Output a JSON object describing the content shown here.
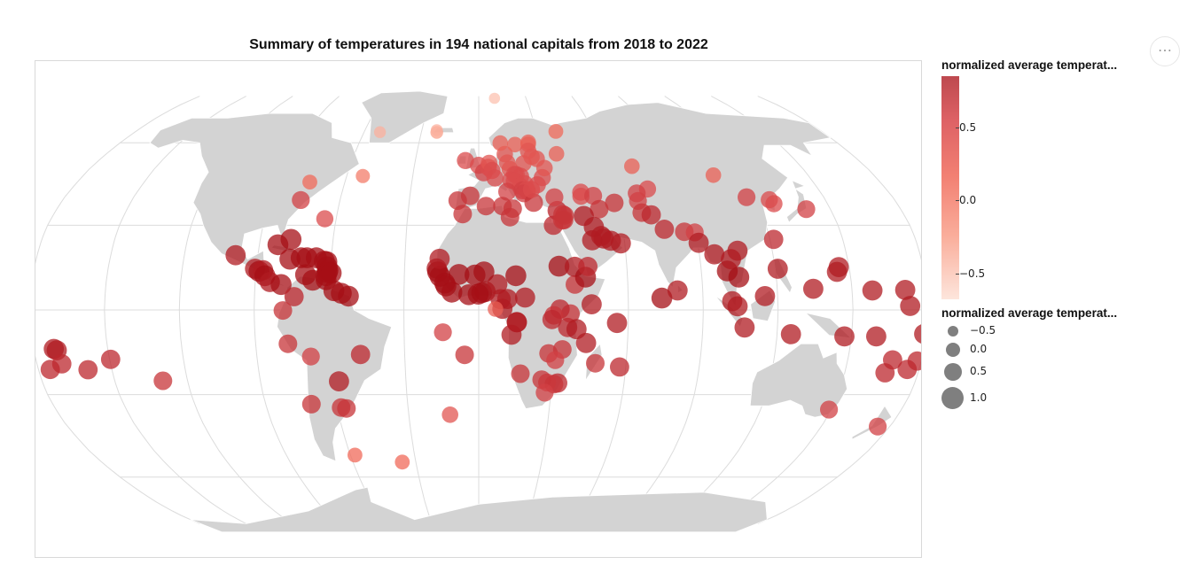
{
  "header": {
    "title": "Summary of temperatures in 194 national capitals from 2018 to 2022",
    "more_icon": "more-horizontal-icon"
  },
  "legend": {
    "color_title": "normalized average temperat...",
    "color_ticks": [
      "0.5",
      "0.0",
      "−0.5"
    ],
    "size_title": "normalized average temperat...",
    "size_items": [
      "−0.5",
      "0.0",
      "0.5",
      "1.0"
    ]
  },
  "colors": {
    "land": "#d3d3d3",
    "graticule": "#dcdcdc",
    "point_low": "#fde1d6",
    "point_high": "#a50f15"
  },
  "map_data": {
    "projection": "robinson",
    "points": [
      {
        "lon": -51.7,
        "lat": 64.2,
        "t": -0.3
      },
      {
        "lon": -21.9,
        "lat": 64.1,
        "t": -0.2
      },
      {
        "lon": -75.7,
        "lat": 45.4,
        "t": 0.1
      },
      {
        "lon": -77.0,
        "lat": 38.9,
        "t": 0.5
      },
      {
        "lon": -52.7,
        "lat": 47.6,
        "t": 0.0
      },
      {
        "lon": -64.8,
        "lat": 32.3,
        "t": 0.4
      },
      {
        "lon": -99.1,
        "lat": 19.4,
        "t": 0.8
      },
      {
        "lon": -90.5,
        "lat": 14.6,
        "t": 0.8
      },
      {
        "lon": -88.8,
        "lat": 13.7,
        "t": 0.9
      },
      {
        "lon": -87.2,
        "lat": 14.1,
        "t": 0.8
      },
      {
        "lon": -86.3,
        "lat": 12.1,
        "t": 0.9
      },
      {
        "lon": -84.1,
        "lat": 9.9,
        "t": 0.8
      },
      {
        "lon": -79.5,
        "lat": 9.0,
        "t": 0.9
      },
      {
        "lon": -82.4,
        "lat": 23.1,
        "t": 0.9
      },
      {
        "lon": -77.3,
        "lat": 25.0,
        "t": 0.9
      },
      {
        "lon": -76.8,
        "lat": 18.0,
        "t": 0.9
      },
      {
        "lon": -72.3,
        "lat": 18.5,
        "t": 0.9
      },
      {
        "lon": -69.9,
        "lat": 18.5,
        "t": 0.9
      },
      {
        "lon": -66.1,
        "lat": 18.5,
        "t": 0.9
      },
      {
        "lon": -61.7,
        "lat": 17.1,
        "t": 0.9
      },
      {
        "lon": -62.7,
        "lat": 17.3,
        "t": 0.9
      },
      {
        "lon": -61.4,
        "lat": 15.3,
        "t": 0.9
      },
      {
        "lon": -61.0,
        "lat": 14.0,
        "t": 0.9
      },
      {
        "lon": -59.6,
        "lat": 13.1,
        "t": 0.9
      },
      {
        "lon": -61.2,
        "lat": 13.2,
        "t": 0.9
      },
      {
        "lon": -61.7,
        "lat": 12.1,
        "t": 0.9
      },
      {
        "lon": -61.5,
        "lat": 10.7,
        "t": 0.9
      },
      {
        "lon": -69.9,
        "lat": 12.5,
        "t": 0.9
      },
      {
        "lon": -66.9,
        "lat": 10.5,
        "t": 0.9
      },
      {
        "lon": -74.1,
        "lat": 4.7,
        "t": 0.7
      },
      {
        "lon": -78.5,
        "lat": -0.2,
        "t": 0.6
      },
      {
        "lon": -58.2,
        "lat": 6.8,
        "t": 0.9
      },
      {
        "lon": -55.2,
        "lat": 5.9,
        "t": 0.9
      },
      {
        "lon": -52.3,
        "lat": 4.9,
        "t": 0.9
      },
      {
        "lon": -77.0,
        "lat": -12.0,
        "t": 0.6
      },
      {
        "lon": -68.1,
        "lat": -16.5,
        "t": 0.5
      },
      {
        "lon": -47.9,
        "lat": -15.8,
        "t": 0.7
      },
      {
        "lon": -57.6,
        "lat": -25.3,
        "t": 0.8
      },
      {
        "lon": -70.7,
        "lat": -33.4,
        "t": 0.6
      },
      {
        "lon": -58.4,
        "lat": -34.6,
        "t": 0.6
      },
      {
        "lon": -56.2,
        "lat": -34.9,
        "t": 0.6
      },
      {
        "lon": -57.9,
        "lat": -51.7,
        "t": 0.1
      },
      {
        "lon": -36.5,
        "lat": -54.3,
        "t": 0.1
      },
      {
        "lon": -14.4,
        "lat": -7.9,
        "t": 0.5
      },
      {
        "lon": -5.7,
        "lat": -15.9,
        "t": 0.6
      },
      {
        "lon": -12.3,
        "lat": -37.1,
        "t": 0.3
      },
      {
        "lon": -22.1,
        "lat": 65.0,
        "t": -0.3
      },
      {
        "lon": -6.3,
        "lat": 53.3,
        "t": 0.4
      },
      {
        "lon": -0.1,
        "lat": 51.5,
        "t": 0.4
      },
      {
        "lon": -9.1,
        "lat": 38.7,
        "t": 0.6
      },
      {
        "lon": -3.7,
        "lat": 40.4,
        "t": 0.6
      },
      {
        "lon": 2.3,
        "lat": 48.9,
        "t": 0.5
      },
      {
        "lon": 4.4,
        "lat": 50.8,
        "t": 0.4
      },
      {
        "lon": 4.9,
        "lat": 52.4,
        "t": 0.3
      },
      {
        "lon": 6.1,
        "lat": 49.6,
        "t": 0.4
      },
      {
        "lon": 7.4,
        "lat": 46.9,
        "t": 0.4
      },
      {
        "lon": 13.4,
        "lat": 52.5,
        "t": 0.3
      },
      {
        "lon": 12.6,
        "lat": 55.7,
        "t": 0.3
      },
      {
        "lon": 10.8,
        "lat": 59.9,
        "t": 0.2
      },
      {
        "lon": 18.1,
        "lat": 59.3,
        "t": 0.2
      },
      {
        "lon": 24.9,
        "lat": 60.2,
        "t": 0.2
      },
      {
        "lon": 24.7,
        "lat": 59.4,
        "t": 0.2
      },
      {
        "lon": 24.1,
        "lat": 56.9,
        "t": 0.3
      },
      {
        "lon": 25.3,
        "lat": 54.7,
        "t": 0.3
      },
      {
        "lon": 27.6,
        "lat": 53.9,
        "t": 0.3
      },
      {
        "lon": 21.0,
        "lat": 52.2,
        "t": 0.3
      },
      {
        "lon": 14.4,
        "lat": 50.1,
        "t": 0.3
      },
      {
        "lon": 16.4,
        "lat": 48.2,
        "t": 0.4
      },
      {
        "lon": 17.1,
        "lat": 48.1,
        "t": 0.4
      },
      {
        "lon": 19.0,
        "lat": 47.5,
        "t": 0.4
      },
      {
        "lon": 14.5,
        "lat": 46.1,
        "t": 0.4
      },
      {
        "lon": 16.0,
        "lat": 45.8,
        "t": 0.4
      },
      {
        "lon": 18.4,
        "lat": 43.9,
        "t": 0.4
      },
      {
        "lon": 20.5,
        "lat": 44.8,
        "t": 0.4
      },
      {
        "lon": 19.3,
        "lat": 42.4,
        "t": 0.5
      },
      {
        "lon": 21.2,
        "lat": 42.7,
        "t": 0.4
      },
      {
        "lon": 21.4,
        "lat": 42.0,
        "t": 0.4
      },
      {
        "lon": 19.8,
        "lat": 41.3,
        "t": 0.5
      },
      {
        "lon": 23.7,
        "lat": 38.0,
        "t": 0.6
      },
      {
        "lon": 23.3,
        "lat": 42.7,
        "t": 0.4
      },
      {
        "lon": 26.1,
        "lat": 44.4,
        "t": 0.4
      },
      {
        "lon": 28.8,
        "lat": 47.0,
        "t": 0.4
      },
      {
        "lon": 30.5,
        "lat": 50.5,
        "t": 0.3
      },
      {
        "lon": 37.6,
        "lat": 55.8,
        "t": 0.2
      },
      {
        "lon": 12.5,
        "lat": 41.9,
        "t": 0.5
      },
      {
        "lon": 14.5,
        "lat": 35.9,
        "t": 0.6
      },
      {
        "lon": 33.4,
        "lat": 35.2,
        "t": 0.7
      },
      {
        "lon": 32.9,
        "lat": 39.9,
        "t": 0.5
      },
      {
        "lon": 44.8,
        "lat": 41.7,
        "t": 0.4
      },
      {
        "lon": 44.5,
        "lat": 40.2,
        "t": 0.4
      },
      {
        "lon": 49.9,
        "lat": 40.4,
        "t": 0.5
      },
      {
        "lon": 71.4,
        "lat": 51.2,
        "t": 0.2
      },
      {
        "lon": 74.6,
        "lat": 42.9,
        "t": 0.4
      },
      {
        "lon": 69.2,
        "lat": 41.3,
        "t": 0.5
      },
      {
        "lon": 68.8,
        "lat": 38.6,
        "t": 0.5
      },
      {
        "lon": 58.4,
        "lat": 37.9,
        "t": 0.6
      },
      {
        "lon": 51.4,
        "lat": 35.7,
        "t": 0.6
      },
      {
        "lon": 69.2,
        "lat": 34.5,
        "t": 0.6
      },
      {
        "lon": 73.0,
        "lat": 33.7,
        "t": 0.7
      },
      {
        "lon": 77.2,
        "lat": 28.6,
        "t": 0.7
      },
      {
        "lon": 85.3,
        "lat": 27.7,
        "t": 0.6
      },
      {
        "lon": 89.6,
        "lat": 27.5,
        "t": 0.5
      },
      {
        "lon": 90.4,
        "lat": 23.8,
        "t": 0.8
      },
      {
        "lon": 96.1,
        "lat": 19.7,
        "t": 0.8
      },
      {
        "lon": 100.5,
        "lat": 13.8,
        "t": 0.9
      },
      {
        "lon": 102.6,
        "lat": 18.0,
        "t": 0.8
      },
      {
        "lon": 105.8,
        "lat": 21.0,
        "t": 0.8
      },
      {
        "lon": 104.9,
        "lat": 11.6,
        "t": 0.9
      },
      {
        "lon": 101.7,
        "lat": 3.1,
        "t": 0.8
      },
      {
        "lon": 103.8,
        "lat": 1.3,
        "t": 0.8
      },
      {
        "lon": 114.9,
        "lat": 4.9,
        "t": 0.8
      },
      {
        "lon": 106.8,
        "lat": -6.2,
        "t": 0.8
      },
      {
        "lon": 125.6,
        "lat": -8.6,
        "t": 0.8
      },
      {
        "lon": 121.0,
        "lat": 14.6,
        "t": 0.8
      },
      {
        "lon": 121.5,
        "lat": 25.0,
        "t": 0.7
      },
      {
        "lon": 116.4,
        "lat": 39.9,
        "t": 0.5
      },
      {
        "lon": 106.9,
        "lat": 47.9,
        "t": 0.2
      },
      {
        "lon": 125.8,
        "lat": 39.0,
        "t": 0.4
      },
      {
        "lon": 127.0,
        "lat": 37.6,
        "t": 0.4
      },
      {
        "lon": 139.7,
        "lat": 35.7,
        "t": 0.5
      },
      {
        "lon": 134.5,
        "lat": 7.5,
        "t": 0.8
      },
      {
        "lon": 144.8,
        "lat": 13.5,
        "t": 0.8
      },
      {
        "lon": 145.8,
        "lat": 15.2,
        "t": 0.8
      },
      {
        "lon": 158.2,
        "lat": 6.9,
        "t": 0.8
      },
      {
        "lon": 171.4,
        "lat": 7.1,
        "t": 0.8
      },
      {
        "lon": 173.0,
        "lat": 1.4,
        "t": 0.8
      },
      {
        "lon": 147.2,
        "lat": -9.4,
        "t": 0.8
      },
      {
        "lon": 160.0,
        "lat": -9.4,
        "t": 0.8
      },
      {
        "lon": 168.3,
        "lat": -17.7,
        "t": 0.7
      },
      {
        "lon": 178.4,
        "lat": -18.1,
        "t": 0.7
      },
      {
        "lon": 179.2,
        "lat": -8.5,
        "t": 0.8
      },
      {
        "lon": 175.2,
        "lat": -21.1,
        "t": 0.7
      },
      {
        "lon": 166.5,
        "lat": -22.3,
        "t": 0.7
      },
      {
        "lon": 174.8,
        "lat": -41.3,
        "t": 0.5
      },
      {
        "lon": 149.1,
        "lat": -35.3,
        "t": 0.5
      },
      {
        "lon": -171.8,
        "lat": -13.8,
        "t": 0.8
      },
      {
        "lon": -170.7,
        "lat": -14.3,
        "t": 0.8
      },
      {
        "lon": -169.9,
        "lat": -19.1,
        "t": 0.7
      },
      {
        "lon": -159.8,
        "lat": -21.2,
        "t": 0.7
      },
      {
        "lon": -149.6,
        "lat": -17.5,
        "t": 0.7
      },
      {
        "lon": -175.2,
        "lat": -21.1,
        "t": 0.7
      },
      {
        "lon": -130.1,
        "lat": -25.1,
        "t": 0.6
      },
      {
        "lon": -17.0,
        "lat": 14.7,
        "t": 0.8
      },
      {
        "lon": -16.6,
        "lat": 13.5,
        "t": 0.9
      },
      {
        "lon": -15.6,
        "lat": 11.9,
        "t": 0.9
      },
      {
        "lon": -13.7,
        "lat": 9.5,
        "t": 0.9
      },
      {
        "lon": -13.2,
        "lat": 8.5,
        "t": 0.9
      },
      {
        "lon": -10.8,
        "lat": 6.3,
        "t": 0.9
      },
      {
        "lon": -4.0,
        "lat": 5.4,
        "t": 0.9
      },
      {
        "lon": -0.2,
        "lat": 5.6,
        "t": 0.9
      },
      {
        "lon": 1.2,
        "lat": 6.1,
        "t": 0.9
      },
      {
        "lon": 2.6,
        "lat": 6.5,
        "t": 0.9
      },
      {
        "lon": 7.5,
        "lat": 9.1,
        "t": 0.8
      },
      {
        "lon": 2.1,
        "lat": 13.5,
        "t": 0.9
      },
      {
        "lon": -1.5,
        "lat": 12.4,
        "t": 0.9
      },
      {
        "lon": -8.0,
        "lat": 12.6,
        "t": 0.9
      },
      {
        "lon": -15.9,
        "lat": 18.1,
        "t": 0.8
      },
      {
        "lon": -6.8,
        "lat": 34.0,
        "t": 0.6
      },
      {
        "lon": 3.1,
        "lat": 36.8,
        "t": 0.6
      },
      {
        "lon": 10.2,
        "lat": 36.8,
        "t": 0.6
      },
      {
        "lon": 13.2,
        "lat": 32.9,
        "t": 0.6
      },
      {
        "lon": 31.2,
        "lat": 30.0,
        "t": 0.7
      },
      {
        "lon": 32.5,
        "lat": 15.5,
        "t": 0.9
      },
      {
        "lon": 15.0,
        "lat": 12.1,
        "t": 0.9
      },
      {
        "lon": 18.6,
        "lat": 4.4,
        "t": 0.8
      },
      {
        "lon": 11.5,
        "lat": 3.9,
        "t": 0.8
      },
      {
        "lon": 8.8,
        "lat": 3.8,
        "t": 0.8
      },
      {
        "lon": 9.5,
        "lat": 0.4,
        "t": 0.8
      },
      {
        "lon": 6.7,
        "lat": 0.3,
        "t": 0.2
      },
      {
        "lon": 15.3,
        "lat": -4.3,
        "t": 0.8
      },
      {
        "lon": 15.3,
        "lat": -4.4,
        "t": 0.8
      },
      {
        "lon": 13.2,
        "lat": -8.8,
        "t": 0.8
      },
      {
        "lon": 38.7,
        "lat": 9.0,
        "t": 0.6
      },
      {
        "lon": 38.9,
        "lat": 15.3,
        "t": 0.8
      },
      {
        "lon": 43.1,
        "lat": 11.6,
        "t": 0.9
      },
      {
        "lon": 45.3,
        "lat": 2.0,
        "t": 0.8
      },
      {
        "lon": 36.8,
        "lat": -1.3,
        "t": 0.6
      },
      {
        "lon": 32.6,
        "lat": 0.3,
        "t": 0.7
      },
      {
        "lon": 30.1,
        "lat": -1.9,
        "t": 0.6
      },
      {
        "lon": 29.4,
        "lat": -3.4,
        "t": 0.7
      },
      {
        "lon": 35.7,
        "lat": -6.2,
        "t": 0.7
      },
      {
        "lon": 39.3,
        "lat": -6.8,
        "t": 0.8
      },
      {
        "lon": 33.8,
        "lat": -14.0,
        "t": 0.6
      },
      {
        "lon": 28.3,
        "lat": -15.4,
        "t": 0.6
      },
      {
        "lon": 31.1,
        "lat": -17.8,
        "t": 0.5
      },
      {
        "lon": 32.6,
        "lat": -25.9,
        "t": 0.7
      },
      {
        "lon": 28.2,
        "lat": -25.7,
        "t": 0.5
      },
      {
        "lon": 25.9,
        "lat": -24.7,
        "t": 0.6
      },
      {
        "lon": 17.1,
        "lat": -22.6,
        "t": 0.6
      },
      {
        "lon": 31.1,
        "lat": -26.3,
        "t": 0.6
      },
      {
        "lon": 27.5,
        "lat": -29.3,
        "t": 0.5
      },
      {
        "lon": 47.5,
        "lat": -18.9,
        "t": 0.6
      },
      {
        "lon": 43.3,
        "lat": -11.7,
        "t": 0.8
      },
      {
        "lon": 55.5,
        "lat": -4.6,
        "t": 0.8
      },
      {
        "lon": 57.5,
        "lat": -20.2,
        "t": 0.7
      },
      {
        "lon": 73.5,
        "lat": 4.2,
        "t": 0.9
      },
      {
        "lon": 79.9,
        "lat": 6.9,
        "t": 0.8
      },
      {
        "lon": 44.4,
        "lat": 33.3,
        "t": 0.8
      },
      {
        "lon": 36.3,
        "lat": 33.5,
        "t": 0.6
      },
      {
        "lon": 35.5,
        "lat": 33.9,
        "t": 0.6
      },
      {
        "lon": 35.2,
        "lat": 31.8,
        "t": 0.6
      },
      {
        "lon": 35.9,
        "lat": 31.9,
        "t": 0.6
      },
      {
        "lon": 46.7,
        "lat": 24.7,
        "t": 0.8
      },
      {
        "lon": 48.0,
        "lat": 29.4,
        "t": 0.8
      },
      {
        "lon": 50.6,
        "lat": 26.2,
        "t": 0.8
      },
      {
        "lon": 51.5,
        "lat": 25.3,
        "t": 0.8
      },
      {
        "lon": 54.4,
        "lat": 24.5,
        "t": 0.8
      },
      {
        "lon": 58.4,
        "lat": 23.6,
        "t": 0.8
      },
      {
        "lon": 44.2,
        "lat": 15.4,
        "t": 0.7
      },
      {
        "lon": 40.5,
        "lat": 64.5,
        "t": 0.1
      },
      {
        "lon": 10.0,
        "lat": 79.0,
        "t": -0.4
      }
    ]
  }
}
